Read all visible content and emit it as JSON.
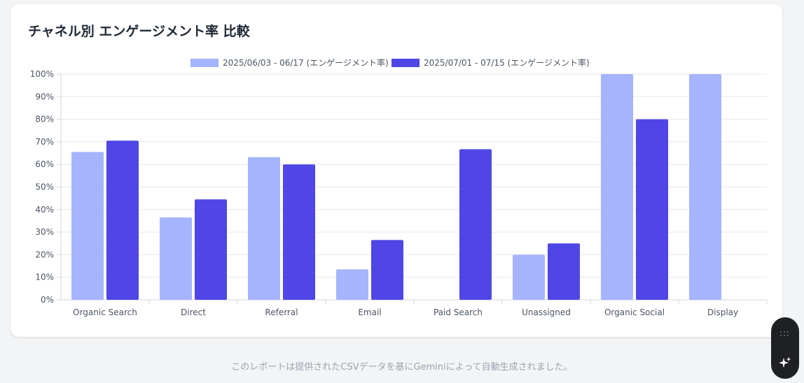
{
  "title": "チャネル別 エンゲージメント率 比較",
  "footer": "このレポートは提供されたCSVデータを基にGeminiによって自動生成されました。",
  "widget": {
    "top_icon": "drag-handle-icon",
    "bottom_icon": "sparkle-icon"
  },
  "chart_data": {
    "type": "bar",
    "categories": [
      "Organic Search",
      "Direct",
      "Referral",
      "Email",
      "Paid Search",
      "Unassigned",
      "Organic Social",
      "Display"
    ],
    "series": [
      {
        "name": "2025/06/03 - 06/17 (エンゲージメント率)",
        "color": "#a5b4fc",
        "values": [
          65.5,
          36.5,
          63.2,
          13.5,
          0,
          20,
          100,
          100
        ]
      },
      {
        "name": "2025/07/01 - 07/15 (エンゲージメント率)",
        "color": "#4f46e5",
        "values": [
          70.5,
          44.5,
          60,
          26.5,
          66.7,
          25,
          80,
          0
        ]
      }
    ],
    "ylim": [
      0,
      100
    ],
    "yticks": [
      "0%",
      "10%",
      "20%",
      "30%",
      "40%",
      "50%",
      "60%",
      "70%",
      "80%",
      "90%",
      "100%"
    ],
    "legend": "top",
    "grid": true
  }
}
